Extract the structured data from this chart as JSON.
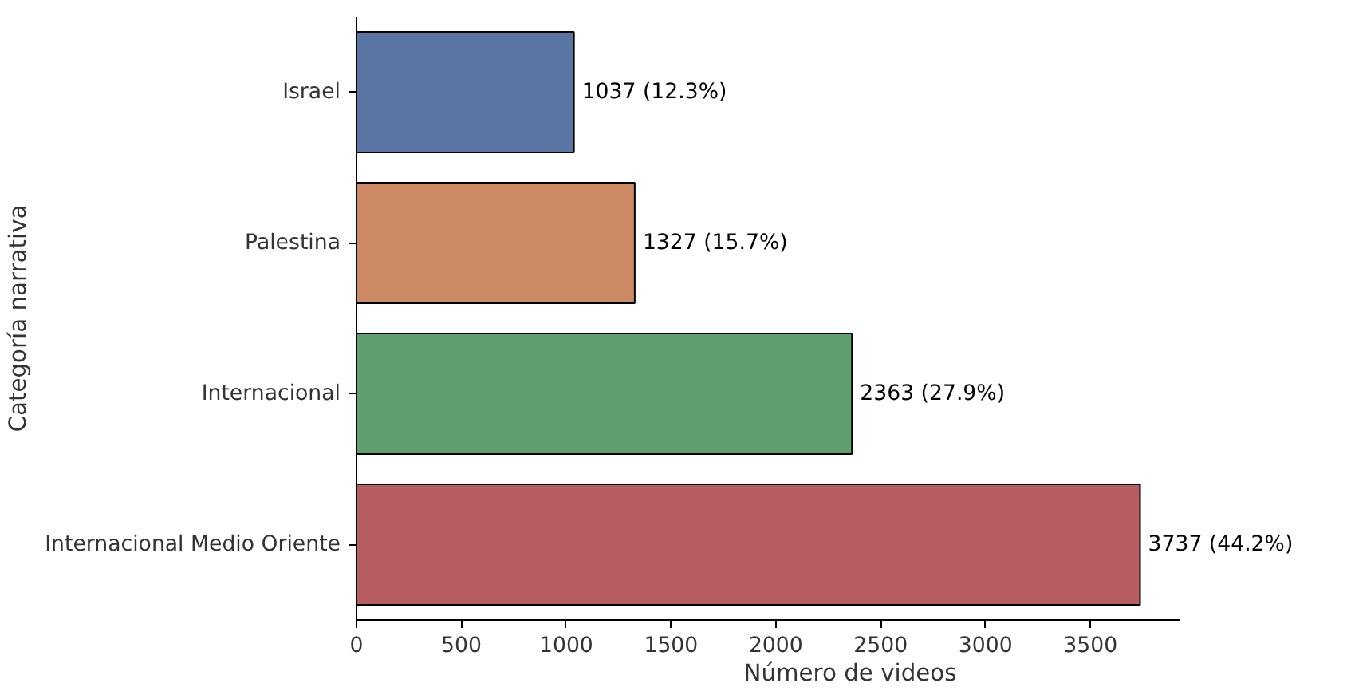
{
  "chart_data": {
    "type": "bar",
    "orientation": "horizontal",
    "xlabel": "Número de videos",
    "ylabel": "Categoría narrativa",
    "categories": [
      "Israel",
      "Palestina",
      "Internacional",
      "Internacional Medio Oriente"
    ],
    "values": [
      1037,
      1327,
      2363,
      3737
    ],
    "colors": [
      "#5975a4",
      "#cc8963",
      "#5f9e6e",
      "#b55d60"
    ],
    "value_labels": [
      "1037 (12.3%)",
      "1327 (15.7%)",
      "2363 (27.9%)",
      "3737 (44.2%)"
    ],
    "xlim": [
      0,
      3924
    ],
    "xticks": [
      0,
      500,
      1000,
      1500,
      2000,
      2500,
      3000,
      3500
    ]
  }
}
